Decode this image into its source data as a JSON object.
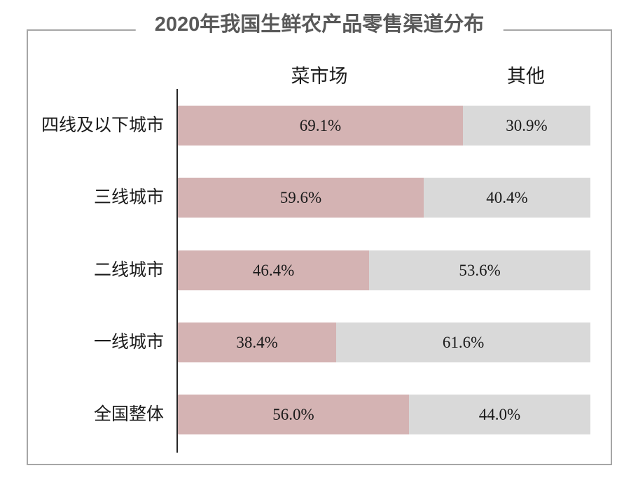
{
  "chart_data": {
    "type": "bar",
    "orientation": "horizontal",
    "stacked": true,
    "title": "2020年我国生鲜农产品零售渠道分布",
    "categories": [
      "四线及以下城市",
      "三线城市",
      "二线城市",
      "一线城市",
      "全国整体"
    ],
    "series": [
      {
        "name": "菜市场",
        "values": [
          69.1,
          59.6,
          46.4,
          38.4,
          56.0
        ],
        "color": "#d4b3b3"
      },
      {
        "name": "其他",
        "values": [
          30.9,
          40.4,
          53.6,
          61.6,
          44.0
        ],
        "color": "#d9d9d9"
      }
    ],
    "value_labels": [
      [
        "69.1%",
        "30.9%"
      ],
      [
        "59.6%",
        "40.4%"
      ],
      [
        "46.4%",
        "53.6%"
      ],
      [
        "38.4%",
        "61.6%"
      ],
      [
        "56.0%",
        "44.0%"
      ]
    ],
    "xlim": [
      0,
      100
    ],
    "legend_position": "top",
    "grid": false
  },
  "colors": {
    "series_caishichang": "#d4b3b3",
    "series_qita": "#d9d9d9",
    "frame_border": "#a6a6a6",
    "axis_line": "#262626",
    "title_text": "#595959",
    "label_text": "#1a1a1a",
    "background": "#ffffff"
  }
}
